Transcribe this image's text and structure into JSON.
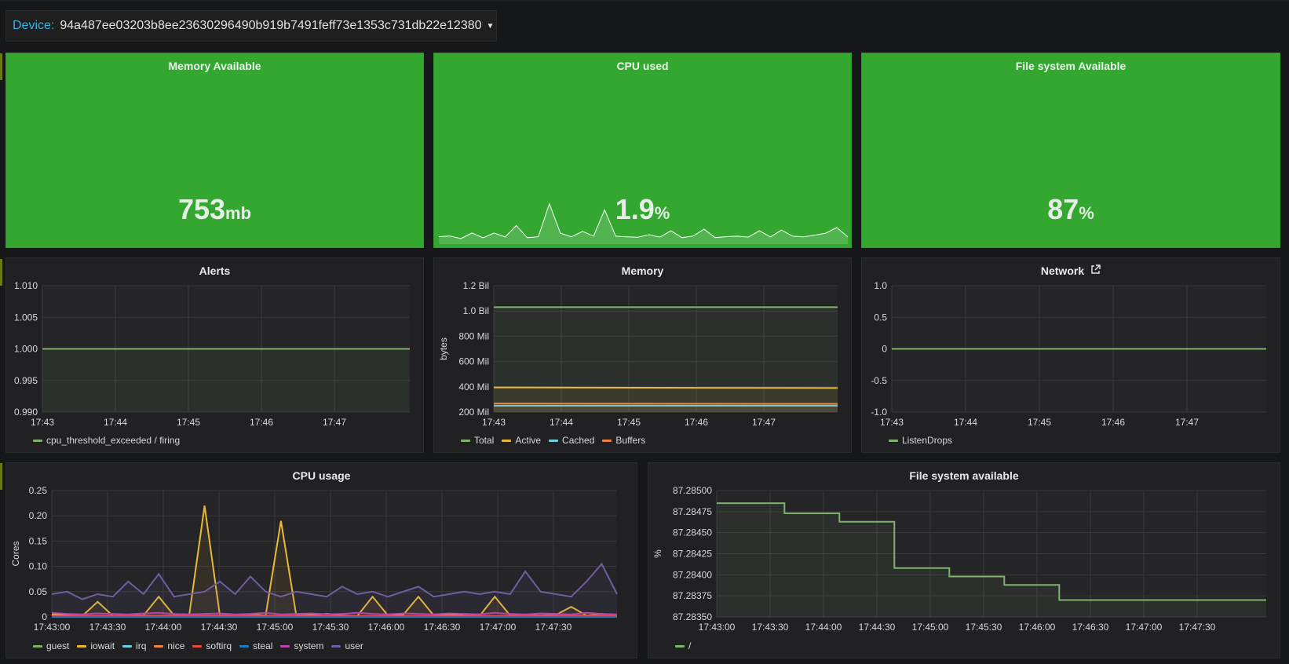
{
  "device": {
    "label": "Device:",
    "value": "94a487ee03203b8ee23630296490b919b7491feff73e1353c731db22e12380"
  },
  "stats": [
    {
      "title": "Memory Available",
      "value": "753",
      "unit": "mb"
    },
    {
      "title": "CPU used",
      "value": "1.9",
      "unit": "%"
    },
    {
      "title": "File system Available",
      "value": "87",
      "unit": "%"
    }
  ],
  "colors": {
    "green": "#7eb26d",
    "yellow": "#eab839",
    "cyan": "#6ed0e0",
    "orange": "#ef843c",
    "red": "#e24d42",
    "blue": "#1f78c1",
    "magenta": "#ba43a9",
    "purple": "#705da0",
    "stat_bg": "#33a72f"
  },
  "panels": {
    "alerts": {
      "title": "Alerts",
      "chart_data": {
        "type": "line",
        "y_ticks": [
          "1.010",
          "1.005",
          "1.000",
          "0.995",
          "0.990"
        ],
        "x_ticks": [
          "17:43",
          "17:44",
          "17:45",
          "17:46",
          "17:47"
        ],
        "ylim": [
          0.99,
          1.01
        ],
        "series": [
          {
            "name": "cpu_threshold_exceeded / firing",
            "values": [
              1.0,
              1.0
            ]
          }
        ]
      }
    },
    "memory": {
      "title": "Memory",
      "chart_data": {
        "type": "area",
        "ylabel": "bytes",
        "y_ticks": [
          "1.2 Bil",
          "1.0 Bil",
          "800 Mil",
          "600 Mil",
          "400 Mil",
          "200 Mil"
        ],
        "x_ticks": [
          "17:43",
          "17:44",
          "17:45",
          "17:46",
          "17:47"
        ],
        "ylim": [
          200000000,
          1200000000
        ],
        "series": [
          {
            "name": "Total",
            "values": [
              1030000000,
              1030000000
            ]
          },
          {
            "name": "Active",
            "values": [
              395000000,
              390000000
            ]
          },
          {
            "name": "Cached",
            "values": [
              250000000,
              250000000
            ]
          },
          {
            "name": "Buffers",
            "values": [
              268000000,
              265000000
            ]
          }
        ]
      }
    },
    "network": {
      "title": "Network",
      "chart_data": {
        "type": "line",
        "y_ticks": [
          "1.0",
          "0.5",
          "0",
          "-0.5",
          "-1.0"
        ],
        "x_ticks": [
          "17:43",
          "17:44",
          "17:45",
          "17:46",
          "17:47"
        ],
        "ylim": [
          -1,
          1
        ],
        "series": [
          {
            "name": "ListenDrops",
            "values": [
              0,
              0
            ]
          }
        ]
      }
    },
    "cpu": {
      "title": "CPU usage",
      "chart_data": {
        "type": "line",
        "ylabel": "Cores",
        "y_ticks": [
          "0.25",
          "0.20",
          "0.15",
          "0.10",
          "0.05",
          "0"
        ],
        "x_ticks": [
          "17:43:00",
          "17:43:30",
          "17:44:00",
          "17:44:30",
          "17:45:00",
          "17:45:30",
          "17:46:00",
          "17:46:30",
          "17:47:00",
          "17:47:30"
        ],
        "ylim": [
          0,
          0.25
        ],
        "series": [
          {
            "name": "guest",
            "values": [
              0,
              0
            ]
          },
          {
            "name": "iowait",
            "values": [
              0.005,
              0.004,
              0.002,
              0.03,
              0.002,
              0.004,
              0.003,
              0.04,
              0.003,
              0.004,
              0.22,
              0.003,
              0.004,
              0.005,
              0.003,
              0.19,
              0.003,
              0.004,
              0.006,
              0.003,
              0.002,
              0.04,
              0.003,
              0.004,
              0.04,
              0.003,
              0.005,
              0.003,
              0.002,
              0.04,
              0.003,
              0.004,
              0.003,
              0.004,
              0.02,
              0.003,
              0.006,
              0.003
            ]
          },
          {
            "name": "irq",
            "values": [
              0,
              0
            ]
          },
          {
            "name": "nice",
            "values": [
              0,
              0
            ]
          },
          {
            "name": "softirq",
            "values": [
              0.002,
              0.003,
              0.002,
              0.002,
              0.003
            ]
          },
          {
            "name": "steal",
            "values": [
              0,
              0
            ]
          },
          {
            "name": "system",
            "values": [
              0.008,
              0.006,
              0.005,
              0.007,
              0.006,
              0.005,
              0.007,
              0.008,
              0.006,
              0.005,
              0.006,
              0.007,
              0.005,
              0.006,
              0.008,
              0.005,
              0.006,
              0.007,
              0.005,
              0.006,
              0.008,
              0.006,
              0.005,
              0.007,
              0.006,
              0.005,
              0.007,
              0.006,
              0.005,
              0.008,
              0.006,
              0.005,
              0.007,
              0.006,
              0.005,
              0.008,
              0.006,
              0.005
            ]
          },
          {
            "name": "user",
            "values": [
              0.045,
              0.05,
              0.035,
              0.045,
              0.04,
              0.07,
              0.045,
              0.085,
              0.04,
              0.045,
              0.05,
              0.07,
              0.045,
              0.08,
              0.05,
              0.04,
              0.05,
              0.045,
              0.04,
              0.06,
              0.045,
              0.05,
              0.04,
              0.05,
              0.06,
              0.04,
              0.045,
              0.05,
              0.045,
              0.05,
              0.045,
              0.09,
              0.05,
              0.045,
              0.04,
              0.07,
              0.105,
              0.045
            ]
          }
        ]
      }
    },
    "fs": {
      "title": "File system available",
      "chart_data": {
        "type": "line",
        "ylabel": "%",
        "y_ticks": [
          "87.28500",
          "87.28475",
          "87.28450",
          "87.28425",
          "87.28400",
          "87.28375",
          "87.28350"
        ],
        "x_ticks": [
          "17:43:00",
          "17:43:30",
          "17:44:00",
          "17:44:30",
          "17:45:00",
          "17:45:30",
          "17:46:00",
          "17:46:30",
          "17:47:00",
          "17:47:30"
        ],
        "ylim": [
          87.2835,
          87.285
        ],
        "series": [
          {
            "name": "/",
            "x": [
              0,
              37,
              67,
              97,
              127,
              157,
              187,
              217,
              247,
              300
            ],
            "values": [
              87.28485,
              87.28473,
              87.28463,
              87.28408,
              87.28398,
              87.28388,
              87.2837,
              87.2837,
              87.2837,
              87.2837
            ]
          }
        ]
      }
    }
  }
}
